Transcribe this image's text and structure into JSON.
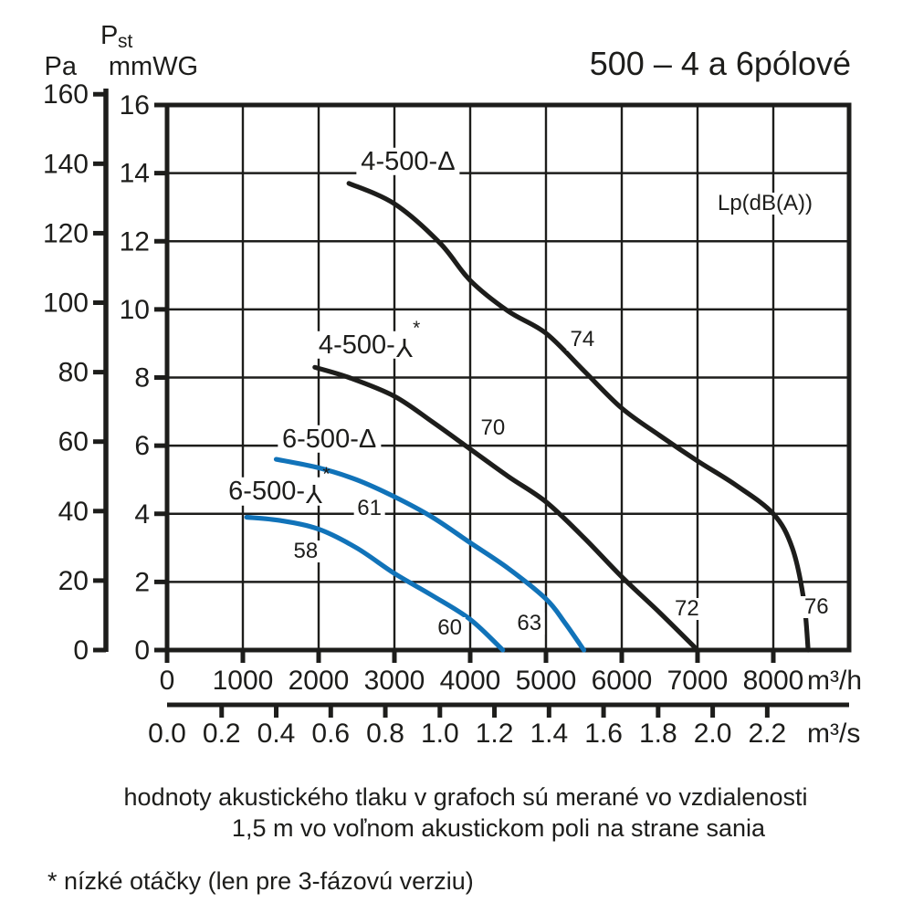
{
  "page": {
    "title": "500 – 4 a 6pólové",
    "caption_line1": "hodnoty akustického tlaku v grafoch sú merané vo vzdialenosti",
    "caption_line2": "1,5 m vo voľnom akustickom poli na strane sania",
    "footnote": "* nízké otáčky (len pre 3-fázovú verziu)"
  },
  "chart_data": {
    "type": "line",
    "title": "500 – 4 a 6pólové",
    "legend_label": "Lp(dB(A))",
    "pressure_header": {
      "pst_p": "P",
      "pst_sub": "st",
      "pa": "Pa",
      "mmwg": "mmWG"
    },
    "grid": true,
    "x_axis_m3h": {
      "unit": "m³/h",
      "max": 9000,
      "ticks": [
        0,
        1000,
        2000,
        3000,
        4000,
        5000,
        6000,
        7000,
        8000
      ]
    },
    "x_axis_m3s": {
      "unit": "m³/s",
      "ticks": [
        "0.0",
        "0.2",
        "0.4",
        "0.6",
        "0.8",
        "1.0",
        "1.2",
        "1.4",
        "1.6",
        "1.8",
        "2.0",
        "2.2"
      ]
    },
    "y_axis_mmwg": {
      "max": 16,
      "ticks": [
        16,
        14,
        12,
        10,
        8,
        6,
        4,
        2,
        0
      ]
    },
    "y_axis_pa": {
      "ticks": [
        160,
        140,
        120,
        100,
        80,
        60,
        40,
        20,
        0
      ]
    },
    "colors": {
      "black_curve": "#1d1d1b",
      "blue_curve": "#1173b9",
      "grid": "#1d1d1b"
    },
    "series": [
      {
        "name": "4-500-Δ",
        "color": "#1d1d1b",
        "points": [
          [
            2400,
            13.7
          ],
          [
            3000,
            13.1
          ],
          [
            3600,
            11.95
          ],
          [
            4000,
            10.85
          ],
          [
            4500,
            9.95
          ],
          [
            5000,
            9.3
          ],
          [
            5500,
            8.2
          ],
          [
            6000,
            7.1
          ],
          [
            6500,
            6.3
          ],
          [
            7000,
            5.55
          ],
          [
            7500,
            4.85
          ],
          [
            8000,
            4.0
          ],
          [
            8250,
            3.0
          ],
          [
            8400,
            1.5
          ],
          [
            8460,
            0
          ]
        ]
      },
      {
        "name": "4-500-⅄",
        "star": true,
        "color": "#1d1d1b",
        "points": [
          [
            1950,
            8.3
          ],
          [
            2400,
            8.0
          ],
          [
            3000,
            7.45
          ],
          [
            3500,
            6.7
          ],
          [
            4000,
            5.9
          ],
          [
            4500,
            5.1
          ],
          [
            5000,
            4.35
          ],
          [
            5500,
            3.3
          ],
          [
            6000,
            2.15
          ],
          [
            6500,
            1.1
          ],
          [
            7000,
            0
          ]
        ]
      },
      {
        "name": "6-500-Δ",
        "color": "#1173b9",
        "points": [
          [
            1440,
            5.6
          ],
          [
            2000,
            5.35
          ],
          [
            2500,
            5.0
          ],
          [
            3000,
            4.5
          ],
          [
            3500,
            3.9
          ],
          [
            4000,
            3.15
          ],
          [
            4500,
            2.4
          ],
          [
            5000,
            1.5
          ],
          [
            5250,
            0.8
          ],
          [
            5500,
            0
          ]
        ]
      },
      {
        "name": "6-500-⅄",
        "star": true,
        "color": "#1173b9",
        "points": [
          [
            1050,
            3.9
          ],
          [
            1500,
            3.8
          ],
          [
            2000,
            3.55
          ],
          [
            2500,
            3.0
          ],
          [
            3000,
            2.25
          ],
          [
            3500,
            1.6
          ],
          [
            4000,
            0.9
          ],
          [
            4430,
            0
          ]
        ]
      }
    ],
    "curve_labels": [
      {
        "text": "4-500-Δ",
        "sup": "",
        "q": 3180,
        "p": 14.35
      },
      {
        "text": "4-500-⅄",
        "sup": "*",
        "q": 2670,
        "p": 8.95
      },
      {
        "text": "6-500-Δ",
        "sup": "",
        "q": 2140,
        "p": 6.2
      },
      {
        "text": "6-500-⅄",
        "sup": "*",
        "q": 1480,
        "p": 4.66
      }
    ],
    "spl_labels": [
      {
        "value": "74",
        "q": 5480,
        "p": 9.1
      },
      {
        "value": "70",
        "q": 4300,
        "p": 6.5
      },
      {
        "value": "61",
        "q": 2670,
        "p": 4.15
      },
      {
        "value": "58",
        "q": 1830,
        "p": 2.9
      },
      {
        "value": "60",
        "q": 3730,
        "p": 0.65
      },
      {
        "value": "63",
        "q": 4780,
        "p": 0.78
      },
      {
        "value": "72",
        "q": 6860,
        "p": 1.2
      },
      {
        "value": "76",
        "q": 8570,
        "p": 1.25
      }
    ]
  }
}
